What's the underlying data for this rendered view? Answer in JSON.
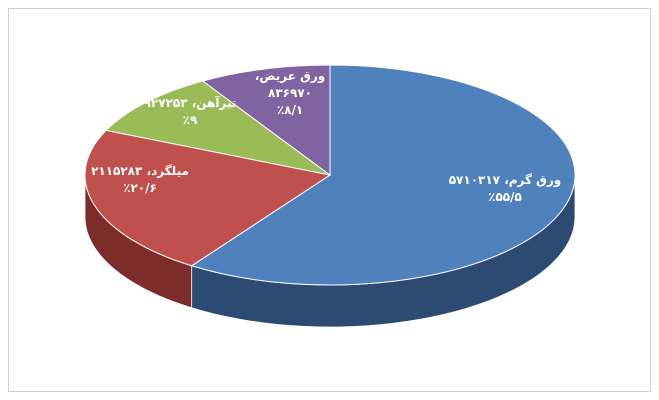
{
  "chart_data": {
    "type": "pie",
    "categories": [
      "ورق گرم، ۵۷۱۰۳۱۷",
      "میلگرد، ۲۱۱۵۲۸۳",
      "تیرآهن، ۹۲۷۲۵۳",
      "ورق عریض، ۸۳۶۹۷۰"
    ],
    "values": [
      55.5,
      20.6,
      9,
      8.1
    ],
    "value_labels": [
      "٪۵۵/۵",
      "٪۲۰/۶",
      "٪۹",
      "٪۸/۱"
    ],
    "colors": [
      "#4f81bd",
      "#c0504d",
      "#9bbb59",
      "#8064a2"
    ],
    "side_colors": [
      "#2c4a72",
      "#7c2d2b",
      "#5f7a33",
      "#4d3a66"
    ]
  }
}
